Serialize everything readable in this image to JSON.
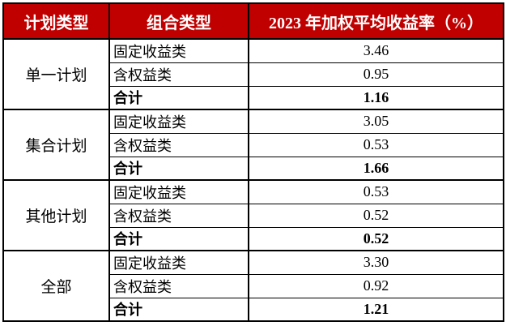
{
  "table": {
    "headers": [
      "计划类型",
      "组合类型",
      "2023 年加权平均收益率（%）"
    ],
    "groups": [
      {
        "plan": "单一计划",
        "rows": [
          {
            "portfolio": "固定收益类",
            "value": "3.46"
          },
          {
            "portfolio": "含权益类",
            "value": "0.95"
          },
          {
            "portfolio": "合计",
            "value": "1.16"
          }
        ]
      },
      {
        "plan": "集合计划",
        "rows": [
          {
            "portfolio": "固定收益类",
            "value": "3.05"
          },
          {
            "portfolio": "含权益类",
            "value": "0.53"
          },
          {
            "portfolio": "合计",
            "value": "1.66"
          }
        ]
      },
      {
        "plan": "其他计划",
        "rows": [
          {
            "portfolio": "固定收益类",
            "value": "0.53"
          },
          {
            "portfolio": "含权益类",
            "value": "0.52"
          },
          {
            "portfolio": "合计",
            "value": "0.52"
          }
        ]
      },
      {
        "plan": "全部",
        "rows": [
          {
            "portfolio": "固定收益类",
            "value": "3.30"
          },
          {
            "portfolio": "含权益类",
            "value": "0.92"
          },
          {
            "portfolio": "合计",
            "value": "1.21"
          }
        ]
      }
    ]
  },
  "colors": {
    "header_bg": "#c00000",
    "header_text": "#ffffff",
    "border": "#000000",
    "body_text": "#000000"
  },
  "chart_data": {
    "type": "table",
    "columns": [
      "计划类型",
      "组合类型",
      "2023 年加权平均收益率（%）"
    ],
    "rows": [
      [
        "单一计划",
        "固定收益类",
        3.46
      ],
      [
        "单一计划",
        "含权益类",
        0.95
      ],
      [
        "单一计划",
        "合计",
        1.16
      ],
      [
        "集合计划",
        "固定收益类",
        3.05
      ],
      [
        "集合计划",
        "含权益类",
        0.53
      ],
      [
        "集合计划",
        "合计",
        1.66
      ],
      [
        "其他计划",
        "固定收益类",
        0.53
      ],
      [
        "其他计划",
        "含权益类",
        0.52
      ],
      [
        "其他计划",
        "合计",
        0.52
      ],
      [
        "全部",
        "固定收益类",
        3.3
      ],
      [
        "全部",
        "含权益类",
        0.92
      ],
      [
        "全部",
        "合计",
        1.21
      ]
    ]
  }
}
